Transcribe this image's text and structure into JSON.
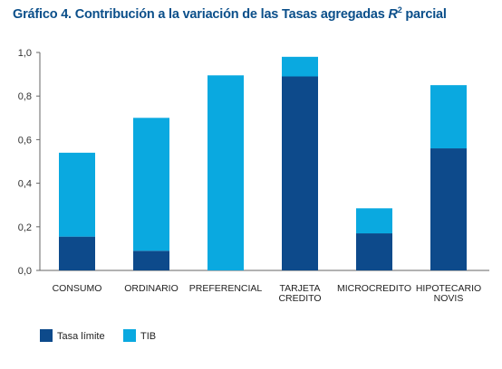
{
  "title": {
    "prefix": "Gráfico 4. Contribución a la variación de las Tasas agregadas ",
    "r2": "R",
    "sup": "2",
    "suffix": " parcial"
  },
  "colors": {
    "tasa_limite": "#0d4a8b",
    "tib": "#0aa9e0"
  },
  "chart_data": {
    "type": "bar",
    "stacked": true,
    "categories": [
      [
        "CONSUMO"
      ],
      [
        "ORDINARIO"
      ],
      [
        "PREFERENCIAL"
      ],
      [
        "TARJETA",
        "CREDITO"
      ],
      [
        "MICROCREDITO"
      ],
      [
        "HIPOTECARIO",
        "NOVIS"
      ]
    ],
    "series": [
      {
        "name": "Tasa límite",
        "values": [
          0.155,
          0.09,
          0.0,
          0.89,
          0.17,
          0.56
        ]
      },
      {
        "name": "TIB",
        "values": [
          0.385,
          0.61,
          0.895,
          0.09,
          0.115,
          0.29
        ]
      }
    ],
    "yticks": [
      "0,0",
      "0,2",
      "0,4",
      "0,6",
      "0,8",
      "1,0"
    ],
    "ylim": [
      0,
      1.0
    ],
    "grid": false,
    "legend": "bottom-left"
  }
}
